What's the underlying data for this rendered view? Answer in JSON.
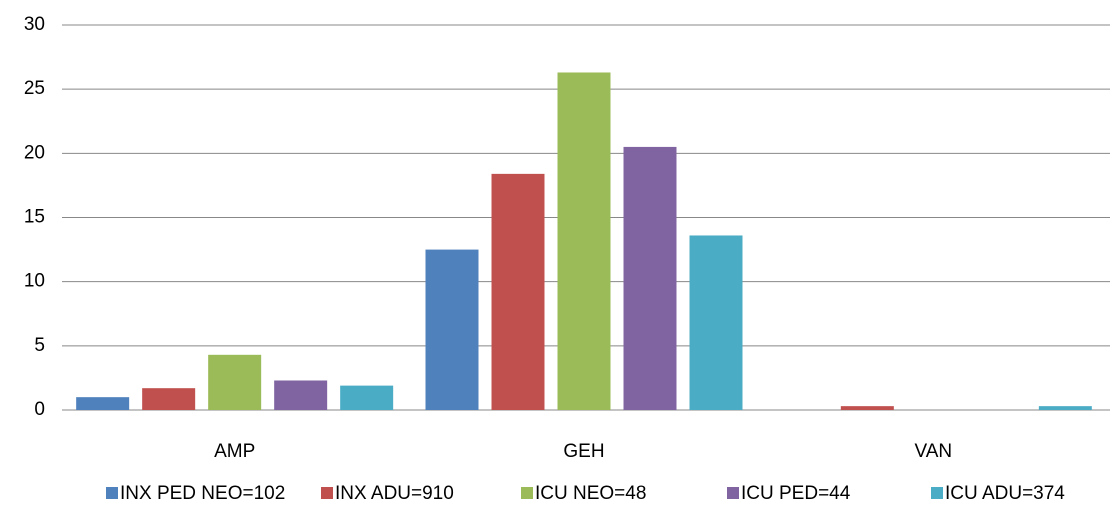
{
  "chart_data": {
    "type": "bar",
    "categories": [
      "AMP",
      "GEH",
      "VAN"
    ],
    "series": [
      {
        "name": "INX PED NEO=102",
        "color": "#4f81bd",
        "values": [
          1.0,
          12.5,
          0
        ]
      },
      {
        "name": "INX ADU=910",
        "color": "#c0504d",
        "values": [
          1.7,
          18.4,
          0.3
        ]
      },
      {
        "name": "ICU NEO=48",
        "color": "#9bbb59",
        "values": [
          4.3,
          26.3,
          0
        ]
      },
      {
        "name": "ICU PED=44",
        "color": "#8064a2",
        "values": [
          2.3,
          20.5,
          0
        ]
      },
      {
        "name": "ICU ADU=374",
        "color": "#4bacc6",
        "values": [
          1.9,
          13.6,
          0.3
        ]
      }
    ],
    "ylim": [
      0,
      30
    ],
    "yticks": [
      0,
      5,
      10,
      15,
      20,
      25,
      30
    ],
    "grid": true,
    "legend": "bottom"
  }
}
